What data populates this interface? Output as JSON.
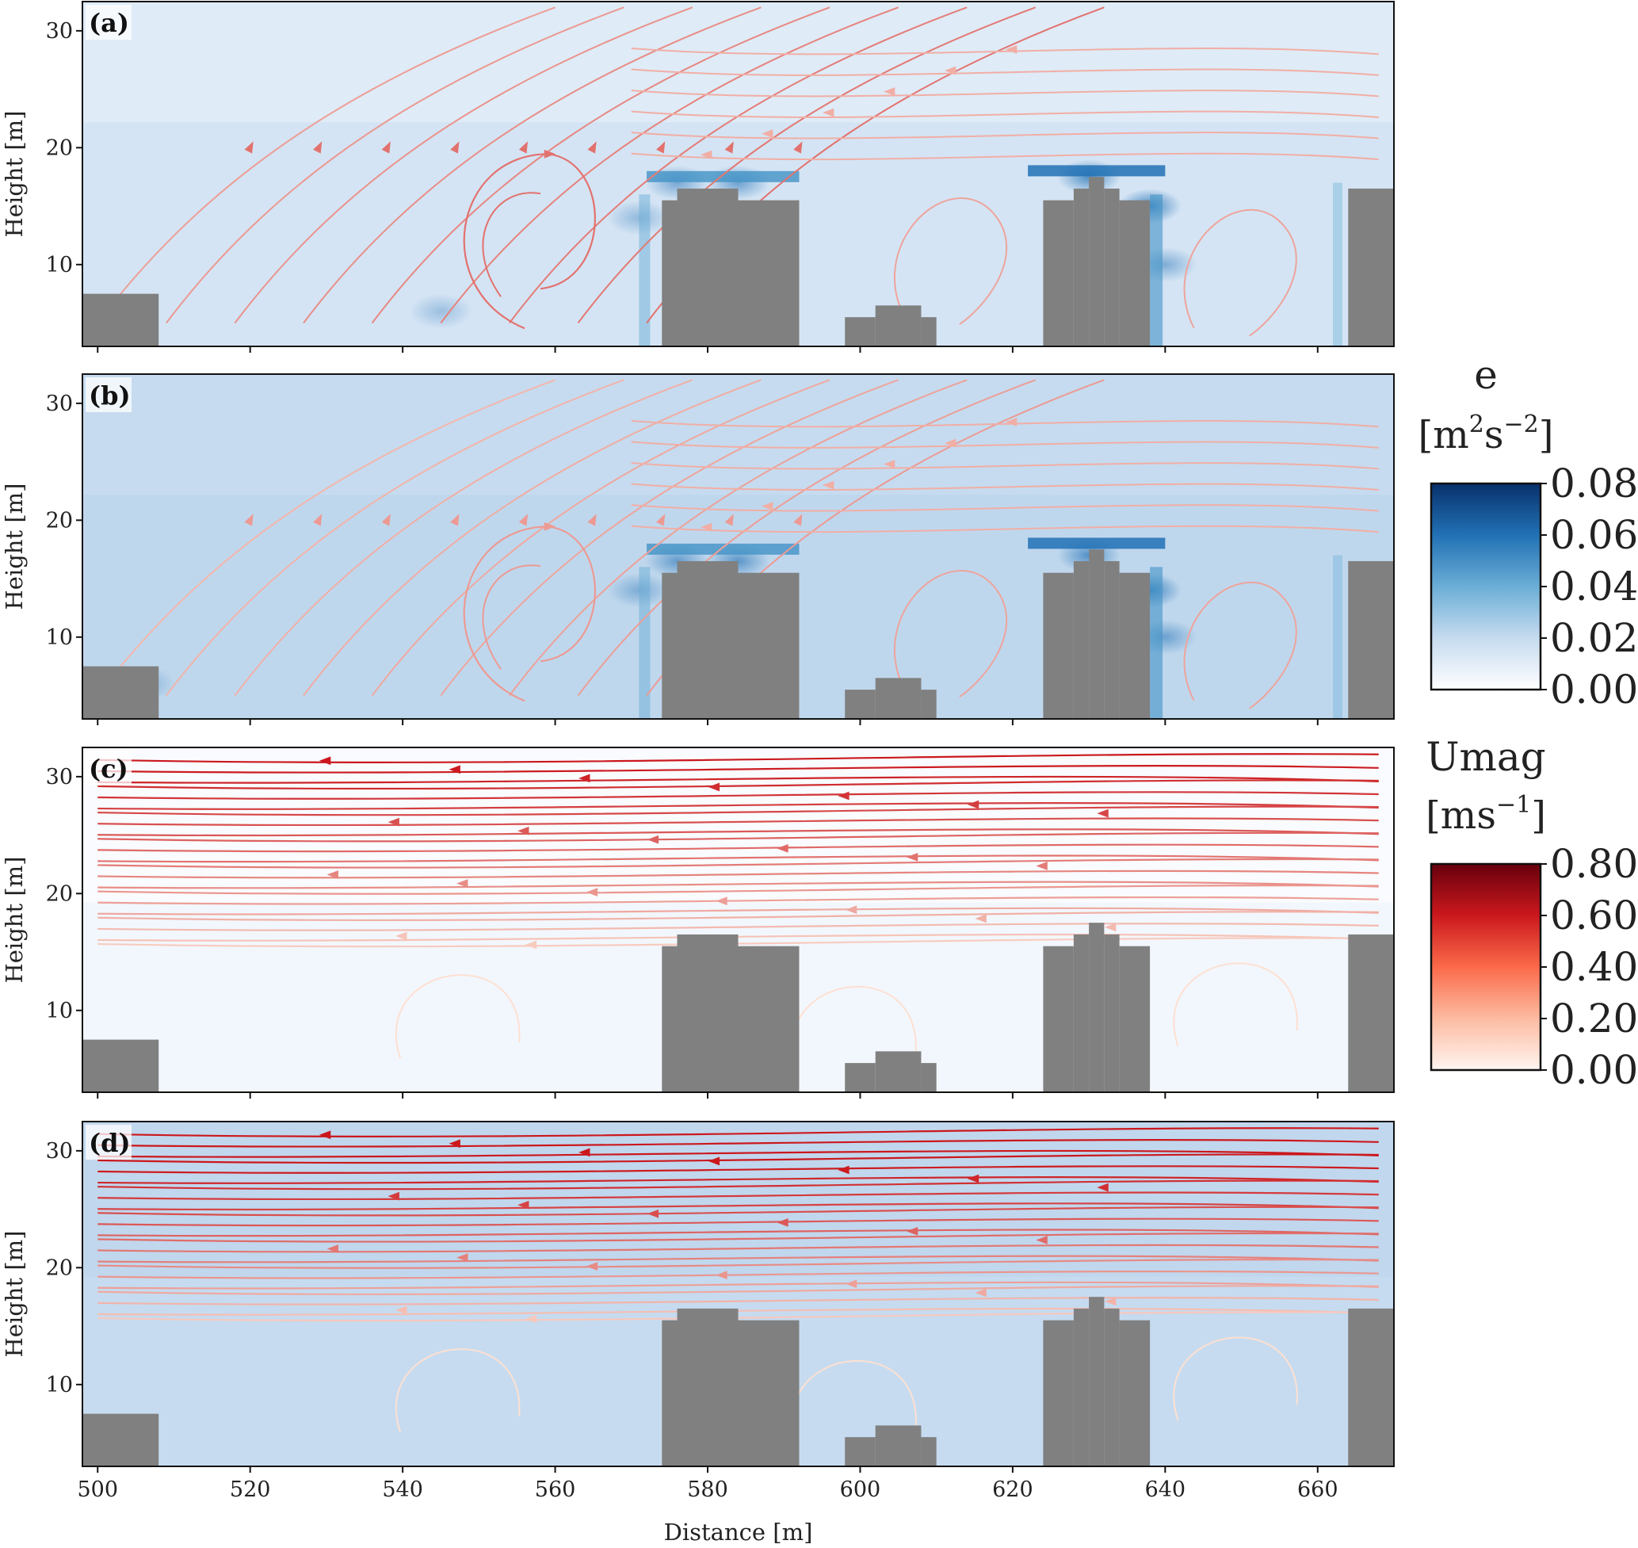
{
  "chart_data": {
    "type": "heatmap",
    "description_note": "",
    "xlabel": "Distance [m]",
    "ylabel": "Height [m]",
    "xlim": [
      498,
      670
    ],
    "ylim": [
      3,
      32.5
    ],
    "xticks": [
      500,
      520,
      540,
      560,
      580,
      600,
      620,
      640,
      660
    ],
    "yticks": [
      10,
      20,
      30
    ],
    "buildings": [
      {
        "x0": 498,
        "x1": 508,
        "top": 7.5
      },
      {
        "x0": 574,
        "x1": 576,
        "top": 15.5
      },
      {
        "x0": 576,
        "x1": 584,
        "top": 16.5
      },
      {
        "x0": 584,
        "x1": 592,
        "top": 15.5
      },
      {
        "x0": 598,
        "x1": 602,
        "top": 5.5
      },
      {
        "x0": 602,
        "x1": 608,
        "top": 6.5
      },
      {
        "x0": 608,
        "x1": 610,
        "top": 5.5
      },
      {
        "x0": 624,
        "x1": 628,
        "top": 15.5
      },
      {
        "x0": 628,
        "x1": 630,
        "top": 16.5
      },
      {
        "x0": 630,
        "x1": 632,
        "top": 17.5
      },
      {
        "x0": 632,
        "x1": 634,
        "top": 16.5
      },
      {
        "x0": 634,
        "x1": 638,
        "top": 15.5
      },
      {
        "x0": 664,
        "x1": 670,
        "top": 16.5
      }
    ],
    "panels": [
      {
        "label": "(a)",
        "field": "e",
        "background": "#d4e4f4",
        "flow": "vortex",
        "hotspots": [
          [
            576,
            17,
            0.05
          ],
          [
            584,
            17,
            0.055
          ],
          [
            630,
            17.5,
            0.07
          ],
          [
            638,
            15,
            0.075
          ],
          [
            571,
            14,
            0.035
          ],
          [
            640,
            10,
            0.045
          ],
          [
            545,
            6,
            0.03
          ]
        ]
      },
      {
        "label": "(b)",
        "field": "e",
        "background": "#bfd7ed",
        "flow": "vortex",
        "hotspots": [
          [
            576,
            16.5,
            0.055
          ],
          [
            584,
            16.5,
            0.06
          ],
          [
            630,
            17,
            0.065
          ],
          [
            638,
            14,
            0.075
          ],
          [
            571,
            14,
            0.04
          ],
          [
            640,
            10,
            0.05
          ],
          [
            506,
            6,
            0.035
          ]
        ]
      },
      {
        "label": "(c)",
        "field": "Umag",
        "background": "#f2f7fd",
        "flow": "westward",
        "hotspots": []
      },
      {
        "label": "(d)",
        "field": "Umag",
        "background": "#c6dbef",
        "flow": "westward",
        "hotspots": []
      }
    ],
    "colorbars": [
      {
        "title": "e",
        "unit": "m",
        "unit_sup": "2",
        "unit_mid": "s",
        "unit_sup2": "−2",
        "ticks": [
          "0.08",
          "0.06",
          "0.04",
          "0.02",
          "0.00"
        ],
        "range": [
          0,
          0.08
        ],
        "colormap": "Blues",
        "stops": [
          "#ffffff",
          "#c6dbef",
          "#6baed6",
          "#2171b5",
          "#08306b"
        ]
      },
      {
        "title": "Umag",
        "unit": "ms",
        "unit_sup": "−1",
        "ticks": [
          "0.80",
          "0.60",
          "0.40",
          "0.20",
          "0.00"
        ],
        "range": [
          0,
          0.8
        ],
        "colormap": "Reds",
        "stops": [
          "#fff5f0",
          "#fcbba1",
          "#fb6a4a",
          "#cb181d",
          "#67000d"
        ]
      }
    ],
    "colors": {
      "building": "#808080",
      "streamline_low": "#fde0d2",
      "streamline_high": "#cb181d"
    }
  }
}
